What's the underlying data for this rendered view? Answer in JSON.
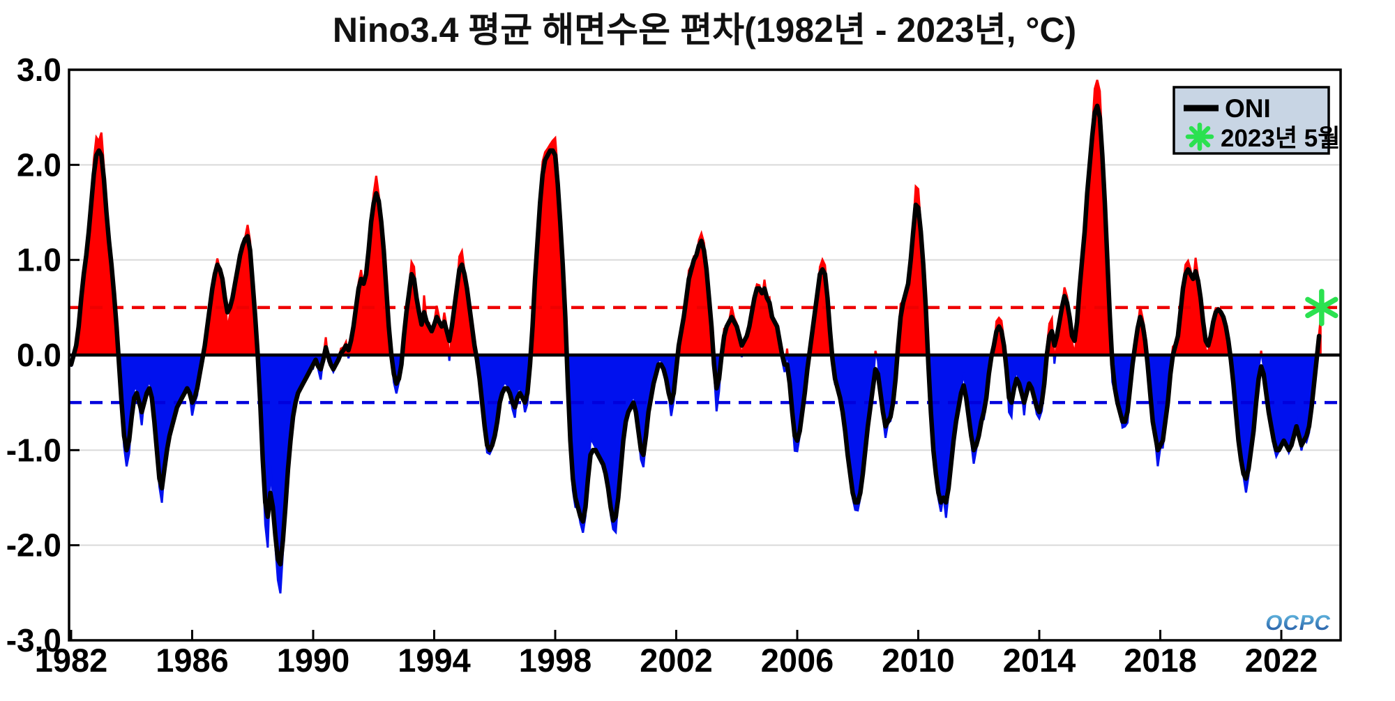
{
  "title": "Nino3.4 평균 해면수온 편차(1982년 - 2023년, °C)",
  "legend": {
    "oni_label": "ONI",
    "marker_label": "2023년 5월"
  },
  "watermark": "OCPC",
  "colors": {
    "warm_fill": "#ff0000",
    "cold_fill": "#0011ee",
    "oni_line": "#000000",
    "zero_line": "#000000",
    "el_nino_threshold": "#ee0000",
    "la_nina_threshold": "#0000dd",
    "marker_green": "#2be150",
    "legend_bg": "#c8d5e4",
    "grid": "#d9d9d9",
    "watermark_top": "#6ec9ea",
    "watermark_bottom": "#1b4c9c"
  },
  "y_axis": {
    "tick_labels": [
      "3.0",
      "2.0",
      "1.0",
      "0.0",
      "-1.0",
      "-2.0",
      "-3.0"
    ],
    "tick_values": [
      3,
      2,
      1,
      0,
      -1,
      -2,
      -3
    ]
  },
  "x_axis": {
    "tick_years": [
      1982,
      1986,
      1990,
      1994,
      1998,
      2002,
      2006,
      2010,
      2014,
      2018,
      2022
    ]
  },
  "chart_data": {
    "type": "area+line",
    "title": "Nino3.4 평균 해면수온 편차(1982년 - 2023년, °C)",
    "xlabel": "",
    "ylabel": "",
    "ylim": [
      -3.0,
      3.0
    ],
    "xlim_years": [
      1981.93,
      2024.0
    ],
    "grid": "horizontal light gray at integer values",
    "legend_position": "top-right",
    "thresholds": {
      "el_nino": 0.5,
      "la_nina": -0.5
    },
    "x_start": "1982-01",
    "x_end": "2023-05",
    "x_interval": "monthly",
    "series": [
      {
        "name": "ONI",
        "color": "#000000",
        "values": [
          -0.1,
          0.0,
          0.1,
          0.3,
          0.6,
          0.85,
          1.05,
          1.3,
          1.6,
          1.9,
          2.1,
          2.15,
          2.1,
          1.85,
          1.5,
          1.2,
          0.95,
          0.65,
          0.3,
          -0.1,
          -0.5,
          -0.85,
          -1.0,
          -0.9,
          -0.65,
          -0.45,
          -0.4,
          -0.5,
          -0.6,
          -0.5,
          -0.4,
          -0.35,
          -0.45,
          -0.7,
          -1.0,
          -1.3,
          -1.4,
          -1.2,
          -1.0,
          -0.85,
          -0.75,
          -0.65,
          -0.55,
          -0.5,
          -0.45,
          -0.4,
          -0.35,
          -0.4,
          -0.5,
          -0.45,
          -0.35,
          -0.2,
          -0.05,
          0.1,
          0.3,
          0.5,
          0.7,
          0.85,
          0.95,
          0.9,
          0.8,
          0.6,
          0.45,
          0.5,
          0.6,
          0.75,
          0.9,
          1.05,
          1.15,
          1.22,
          1.25,
          1.1,
          0.75,
          0.4,
          0.0,
          -0.5,
          -1.1,
          -1.55,
          -1.7,
          -1.45,
          -1.6,
          -1.9,
          -2.15,
          -2.2,
          -1.95,
          -1.6,
          -1.2,
          -0.9,
          -0.65,
          -0.5,
          -0.4,
          -0.35,
          -0.3,
          -0.25,
          -0.2,
          -0.15,
          -0.1,
          -0.05,
          -0.12,
          -0.15,
          -0.05,
          0.08,
          -0.02,
          -0.1,
          -0.15,
          -0.1,
          -0.05,
          0.02,
          0.05,
          0.1,
          0.05,
          0.15,
          0.3,
          0.5,
          0.7,
          0.8,
          0.75,
          0.85,
          1.1,
          1.4,
          1.6,
          1.7,
          1.62,
          1.4,
          1.1,
          0.7,
          0.3,
          0.0,
          -0.2,
          -0.3,
          -0.25,
          -0.1,
          0.2,
          0.45,
          0.65,
          0.85,
          0.8,
          0.6,
          0.45,
          0.32,
          0.45,
          0.35,
          0.3,
          0.25,
          0.32,
          0.4,
          0.35,
          0.3,
          0.35,
          0.25,
          0.15,
          0.3,
          0.5,
          0.7,
          0.9,
          0.95,
          0.85,
          0.7,
          0.5,
          0.3,
          0.1,
          -0.05,
          -0.25,
          -0.5,
          -0.75,
          -0.95,
          -1.0,
          -0.95,
          -0.85,
          -0.7,
          -0.5,
          -0.4,
          -0.35,
          -0.35,
          -0.4,
          -0.5,
          -0.55,
          -0.45,
          -0.4,
          -0.45,
          -0.5,
          -0.4,
          -0.1,
          0.3,
          0.8,
          1.2,
          1.6,
          1.9,
          2.05,
          2.1,
          2.15,
          2.15,
          2.1,
          1.8,
          1.4,
          0.95,
          0.4,
          -0.3,
          -0.9,
          -1.3,
          -1.5,
          -1.6,
          -1.7,
          -1.75,
          -1.6,
          -1.3,
          -1.05,
          -1.0,
          -1.0,
          -1.05,
          -1.1,
          -1.15,
          -1.25,
          -1.4,
          -1.6,
          -1.74,
          -1.7,
          -1.5,
          -1.2,
          -0.9,
          -0.7,
          -0.6,
          -0.55,
          -0.5,
          -0.6,
          -0.8,
          -1.0,
          -1.05,
          -0.85,
          -0.6,
          -0.45,
          -0.3,
          -0.2,
          -0.1,
          -0.1,
          -0.15,
          -0.25,
          -0.4,
          -0.5,
          -0.4,
          -0.15,
          0.1,
          0.25,
          0.4,
          0.6,
          0.8,
          0.9,
          1.0,
          1.05,
          1.15,
          1.2,
          1.1,
          0.9,
          0.6,
          0.3,
          -0.1,
          -0.35,
          -0.25,
          0.0,
          0.2,
          0.3,
          0.35,
          0.4,
          0.35,
          0.3,
          0.2,
          0.1,
          0.15,
          0.2,
          0.3,
          0.45,
          0.6,
          0.7,
          0.7,
          0.65,
          0.7,
          0.6,
          0.55,
          0.4,
          0.35,
          0.3,
          0.15,
          0.0,
          -0.1,
          -0.1,
          -0.3,
          -0.6,
          -0.85,
          -0.9,
          -0.8,
          -0.6,
          -0.4,
          -0.15,
          0.05,
          0.25,
          0.45,
          0.65,
          0.85,
          0.9,
          0.85,
          0.6,
          0.25,
          -0.05,
          -0.25,
          -0.35,
          -0.45,
          -0.6,
          -0.8,
          -1.05,
          -1.25,
          -1.45,
          -1.55,
          -1.55,
          -1.45,
          -1.25,
          -1.0,
          -0.75,
          -0.55,
          -0.35,
          -0.15,
          -0.2,
          -0.4,
          -0.6,
          -0.75,
          -0.7,
          -0.65,
          -0.5,
          -0.25,
          0.1,
          0.4,
          0.55,
          0.65,
          0.75,
          1.0,
          1.3,
          1.58,
          1.55,
          1.3,
          0.95,
          0.5,
          -0.1,
          -0.6,
          -1.0,
          -1.25,
          -1.45,
          -1.55,
          -1.5,
          -1.55,
          -1.4,
          -1.15,
          -0.9,
          -0.7,
          -0.55,
          -0.4,
          -0.32,
          -0.45,
          -0.65,
          -0.85,
          -1.0,
          -0.95,
          -0.85,
          -0.7,
          -0.6,
          -0.45,
          -0.2,
          -0.02,
          0.1,
          0.25,
          0.3,
          0.25,
          0.1,
          -0.15,
          -0.45,
          -0.5,
          -0.35,
          -0.25,
          -0.3,
          -0.4,
          -0.5,
          -0.4,
          -0.3,
          -0.35,
          -0.45,
          -0.55,
          -0.6,
          -0.5,
          -0.3,
          0.0,
          0.2,
          0.25,
          0.1,
          0.2,
          0.35,
          0.5,
          0.62,
          0.55,
          0.4,
          0.2,
          0.15,
          0.35,
          0.7,
          1.0,
          1.3,
          1.7,
          2.0,
          2.3,
          2.55,
          2.62,
          2.5,
          2.1,
          1.6,
          1.0,
          0.4,
          -0.1,
          -0.35,
          -0.5,
          -0.6,
          -0.7,
          -0.7,
          -0.6,
          -0.35,
          -0.1,
          0.1,
          0.28,
          0.4,
          0.32,
          0.15,
          -0.1,
          -0.4,
          -0.7,
          -0.85,
          -1.0,
          -0.95,
          -0.9,
          -0.7,
          -0.5,
          -0.2,
          0.0,
          0.1,
          0.2,
          0.45,
          0.7,
          0.85,
          0.9,
          0.85,
          0.8,
          0.88,
          0.78,
          0.6,
          0.35,
          0.15,
          0.1,
          0.2,
          0.35,
          0.45,
          0.48,
          0.45,
          0.4,
          0.3,
          0.15,
          -0.05,
          -0.3,
          -0.6,
          -0.9,
          -1.1,
          -1.25,
          -1.3,
          -1.2,
          -1.0,
          -0.8,
          -0.5,
          -0.25,
          -0.12,
          -0.2,
          -0.4,
          -0.6,
          -0.75,
          -0.9,
          -1.0,
          -1.0,
          -0.95,
          -0.9,
          -0.95,
          -1.0,
          -0.95,
          -0.85,
          -0.75,
          -0.85,
          -0.95,
          -0.9,
          -0.85,
          -0.75,
          -0.55,
          -0.3,
          -0.05,
          0.2,
          0.48
        ]
      }
    ],
    "marker": {
      "name": "2023년 5월",
      "date": "2023-05",
      "value": 0.5,
      "symbol": "asterisk",
      "color": "#2be150"
    }
  }
}
